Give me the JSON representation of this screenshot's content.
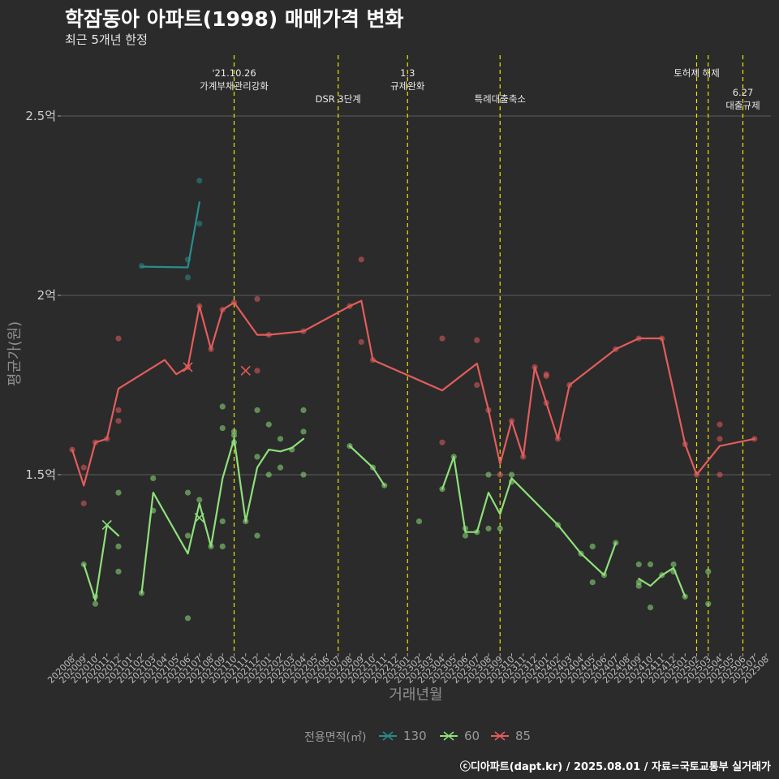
{
  "header": {
    "title": "학잠동아 아파트(1998) 매매가격 변화",
    "subtitle": "최근 5개년 한정"
  },
  "caption": "ⓒ디아파트(dapt.kr) / 2025.08.01 / 자료=국토교통부 실거래가",
  "legend": {
    "title": "전용면적(㎡)"
  },
  "colors": {
    "background": "#2b2b2b",
    "grid": "#5e5e5e",
    "axis_text": "#a6a6a6",
    "event_line": "#e6e600",
    "series_130": "#2a8c8c",
    "series_60": "#8ee07a",
    "series_85": "#e45c5c"
  },
  "chart_data": {
    "type": "line",
    "title": "학잠동아 아파트(1998) 매매가격 변화",
    "subtitle": "최근 5개년 한정",
    "xlabel": "거래년월",
    "ylabel": "평균가(원)",
    "x_categories": [
      "202008",
      "202009",
      "202010",
      "202011",
      "202012",
      "202101",
      "202102",
      "202103",
      "202104",
      "202105",
      "202106",
      "202107",
      "202108",
      "202109",
      "202110",
      "202111",
      "202112",
      "202201",
      "202202",
      "202203",
      "202204",
      "202205",
      "202206",
      "202207",
      "202208",
      "202209",
      "202210",
      "202211",
      "202212",
      "202301",
      "202302",
      "202303",
      "202304",
      "202305",
      "202306",
      "202307",
      "202308",
      "202309",
      "202310",
      "202311",
      "202312",
      "202401",
      "202402",
      "202403",
      "202404",
      "202405",
      "202406",
      "202407",
      "202408",
      "202409",
      "202410",
      "202411",
      "202412",
      "202501",
      "202502",
      "202503",
      "202504",
      "202505",
      "202506",
      "202507",
      "202508"
    ],
    "y_ticks": [
      {
        "value": 150000000,
        "label": "1.5억"
      },
      {
        "value": 200000000,
        "label": "2억"
      },
      {
        "value": 250000000,
        "label": "2.5억"
      }
    ],
    "ylim": [
      95000000,
      265000000
    ],
    "grid": true,
    "legend_position": "bottom",
    "events": [
      {
        "x": 14,
        "lines": [
          "'21.10.26",
          "가계부채관리강화"
        ],
        "row": "upper"
      },
      {
        "x": 23,
        "lines": [
          "DSR 3단계"
        ],
        "row": "lower"
      },
      {
        "x": 29,
        "lines": [
          "1.3",
          "규제완화"
        ],
        "row": "upper"
      },
      {
        "x": 37,
        "lines": [
          "특례대출축소"
        ],
        "row": "lower"
      },
      {
        "x": 54,
        "lines": [
          "토허제 해제"
        ],
        "row": "upper"
      },
      {
        "x": 55,
        "lines": [],
        "row": "upper"
      },
      {
        "x": 58,
        "lines": [
          "6.27",
          "대출규제"
        ],
        "row": "lower"
      }
    ],
    "series": [
      {
        "name": "130",
        "color": "#2a8c8c",
        "line": [
          [
            6,
            208000000
          ],
          [
            10,
            207800000
          ],
          [
            11,
            226000000
          ]
        ],
        "points": [
          [
            6,
            208200000
          ],
          [
            10,
            210000000
          ],
          [
            10,
            205000000
          ],
          [
            11,
            232000000
          ],
          [
            11,
            220000000
          ]
        ],
        "crosses": []
      },
      {
        "name": "60",
        "color": "#8ee07a",
        "line": [
          [
            [
              1,
              125000000
            ],
            [
              2,
              115000000
            ],
            [
              3,
              136000000
            ],
            [
              4,
              133000000
            ]
          ],
          [
            [
              6,
              117000000
            ],
            [
              7,
              145000000
            ],
            [
              10,
              128000000
            ],
            [
              11,
              142000000
            ],
            [
              12,
              130000000
            ],
            [
              13,
              149000000
            ],
            [
              14,
              160000000
            ],
            [
              15,
              137000000
            ],
            [
              16,
              152000000
            ],
            [
              17,
              157000000
            ],
            [
              18,
              156500000
            ],
            [
              19,
              157500000
            ],
            [
              20,
              160000000
            ]
          ],
          [
            [
              24,
              158000000
            ],
            [
              26,
              152000000
            ],
            [
              27,
              147000000
            ]
          ],
          [
            [
              32,
              146000000
            ],
            [
              33,
              155000000
            ],
            [
              34,
              134000000
            ],
            [
              35,
              134000000
            ],
            [
              36,
              145000000
            ],
            [
              37,
              139000000
            ],
            [
              38,
              149000000
            ],
            [
              42,
              136000000
            ],
            [
              44,
              128000000
            ],
            [
              46,
              122000000
            ],
            [
              47,
              131000000
            ]
          ],
          [
            [
              49,
              121000000
            ],
            [
              50,
              119000000
            ],
            [
              51,
              122000000
            ],
            [
              52,
              124000000
            ],
            [
              53,
              116000000
            ]
          ]
        ],
        "points": [
          [
            1,
            125000000
          ],
          [
            2,
            114000000
          ],
          [
            2,
            116000000
          ],
          [
            4,
            145000000
          ],
          [
            4,
            130000000
          ],
          [
            4,
            123000000
          ],
          [
            6,
            117000000
          ],
          [
            7,
            149000000
          ],
          [
            7,
            140000000
          ],
          [
            10,
            145000000
          ],
          [
            10,
            133000000
          ],
          [
            10,
            110000000
          ],
          [
            11,
            143000000
          ],
          [
            12,
            130000000
          ],
          [
            13,
            169000000
          ],
          [
            13,
            163000000
          ],
          [
            13,
            137000000
          ],
          [
            13,
            130000000
          ],
          [
            14,
            162000000
          ],
          [
            14,
            161000000
          ],
          [
            14,
            159000000
          ],
          [
            15,
            137000000
          ],
          [
            16,
            168000000
          ],
          [
            16,
            155000000
          ],
          [
            16,
            133000000
          ],
          [
            17,
            164000000
          ],
          [
            17,
            150000000
          ],
          [
            18,
            160000000
          ],
          [
            18,
            152000000
          ],
          [
            19,
            157000000
          ],
          [
            20,
            168000000
          ],
          [
            20,
            162000000
          ],
          [
            20,
            150000000
          ],
          [
            24,
            158000000
          ],
          [
            26,
            152000000
          ],
          [
            27,
            147000000
          ],
          [
            30,
            137000000
          ],
          [
            32,
            146000000
          ],
          [
            33,
            155000000
          ],
          [
            34,
            135000000
          ],
          [
            34,
            133000000
          ],
          [
            35,
            134000000
          ],
          [
            36,
            150000000
          ],
          [
            36,
            135000000
          ],
          [
            37,
            135000000
          ],
          [
            38,
            150000000
          ],
          [
            38,
            148000000
          ],
          [
            42,
            136000000
          ],
          [
            44,
            128000000
          ],
          [
            45,
            130000000
          ],
          [
            45,
            120000000
          ],
          [
            46,
            122000000
          ],
          [
            47,
            131000000
          ],
          [
            49,
            125000000
          ],
          [
            49,
            120000000
          ],
          [
            49,
            119000000
          ],
          [
            50,
            125000000
          ],
          [
            50,
            113000000
          ],
          [
            51,
            122000000
          ],
          [
            52,
            125000000
          ],
          [
            52,
            123000000
          ],
          [
            53,
            116000000
          ],
          [
            55,
            123000000
          ],
          [
            55,
            114000000
          ]
        ],
        "crosses": [
          [
            3,
            136000000
          ],
          [
            11,
            138000000
          ]
        ]
      },
      {
        "name": "85",
        "color": "#e45c5c",
        "line": [
          [
            0,
            157000000
          ],
          [
            1,
            147000000
          ],
          [
            2,
            159000000
          ],
          [
            3,
            160000000
          ],
          [
            4,
            174000000
          ],
          [
            8,
            182000000
          ],
          [
            9,
            178000000
          ],
          [
            10,
            180000000
          ],
          [
            11,
            197000000
          ],
          [
            12,
            185000000
          ],
          [
            13,
            196000000
          ],
          [
            14,
            198000000
          ],
          [
            16,
            189000000
          ],
          [
            17,
            189000000
          ],
          [
            20,
            190000000
          ],
          [
            24,
            197000000
          ],
          [
            25,
            198500000
          ],
          [
            26,
            182000000
          ],
          [
            32,
            173500000
          ],
          [
            35,
            181000000
          ],
          [
            36,
            168000000
          ],
          [
            37,
            153000000
          ],
          [
            38,
            165000000
          ],
          [
            39,
            155000000
          ],
          [
            40,
            180000000
          ],
          [
            41,
            170000000
          ],
          [
            42,
            160000000
          ],
          [
            43,
            175000000
          ],
          [
            47,
            185000000
          ],
          [
            49,
            188000000
          ],
          [
            51,
            188000000
          ],
          [
            53,
            158500000
          ],
          [
            54,
            150000000
          ],
          [
            56,
            158000000
          ],
          [
            59,
            160000000
          ]
        ],
        "points": [
          [
            0,
            157000000
          ],
          [
            1,
            152000000
          ],
          [
            1,
            142000000
          ],
          [
            2,
            159000000
          ],
          [
            3,
            160000000
          ],
          [
            4,
            188000000
          ],
          [
            4,
            168000000
          ],
          [
            4,
            165000000
          ],
          [
            10,
            180000000
          ],
          [
            11,
            197000000
          ],
          [
            12,
            185000000
          ],
          [
            13,
            196000000
          ],
          [
            14,
            198000000
          ],
          [
            16,
            199000000
          ],
          [
            16,
            179000000
          ],
          [
            17,
            189000000
          ],
          [
            20,
            190000000
          ],
          [
            24,
            197000000
          ],
          [
            25,
            210000000
          ],
          [
            25,
            187000000
          ],
          [
            26,
            182000000
          ],
          [
            32,
            188000000
          ],
          [
            32,
            159000000
          ],
          [
            35,
            187500000
          ],
          [
            35,
            175000000
          ],
          [
            36,
            168000000
          ],
          [
            37,
            150000000
          ],
          [
            38,
            165000000
          ],
          [
            39,
            155000000
          ],
          [
            40,
            180000000
          ],
          [
            41,
            178000000
          ],
          [
            41,
            177500000
          ],
          [
            41,
            170000000
          ],
          [
            42,
            160000000
          ],
          [
            43,
            175000000
          ],
          [
            47,
            185000000
          ],
          [
            49,
            188000000
          ],
          [
            51,
            188000000
          ],
          [
            53,
            158500000
          ],
          [
            54,
            150000000
          ],
          [
            56,
            164000000
          ],
          [
            56,
            160000000
          ],
          [
            56,
            150000000
          ],
          [
            59,
            160000000
          ]
        ],
        "crosses": [
          [
            10,
            180000000
          ],
          [
            15,
            179000000
          ]
        ]
      }
    ]
  }
}
